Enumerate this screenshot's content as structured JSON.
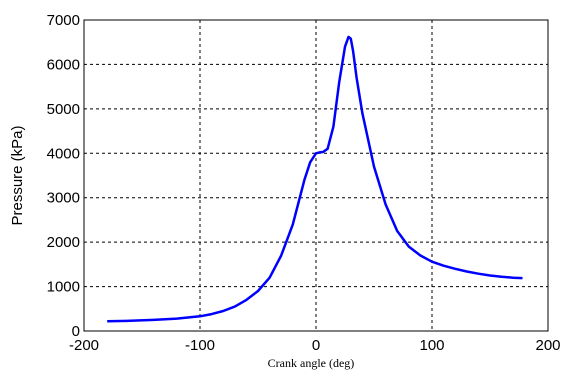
{
  "chart_data": {
    "type": "line",
    "xlabel": "Crank angle (deg)",
    "ylabel": "Pressure (kPa)",
    "xlim": [
      -200,
      200
    ],
    "ylim": [
      0,
      7000
    ],
    "x_ticks": [
      -200,
      -100,
      0,
      100,
      200
    ],
    "y_ticks": [
      0,
      1000,
      2000,
      3000,
      4000,
      5000,
      6000,
      7000
    ],
    "grid": true,
    "line_color": "#0000ff",
    "series": [
      {
        "x": [
          -180,
          -160,
          -140,
          -120,
          -100,
          -90,
          -80,
          -70,
          -60,
          -50,
          -40,
          -30,
          -20,
          -15,
          -10,
          -5,
          0,
          3,
          6,
          10,
          15,
          20,
          25,
          28,
          30,
          32,
          35,
          40,
          50,
          60,
          70,
          80,
          90,
          100,
          110,
          120,
          130,
          140,
          150,
          160,
          170,
          178
        ],
        "y": [
          220,
          230,
          250,
          280,
          330,
          380,
          450,
          550,
          700,
          900,
          1200,
          1700,
          2400,
          2900,
          3400,
          3800,
          4000,
          4020,
          4030,
          4100,
          4600,
          5600,
          6400,
          6620,
          6580,
          6300,
          5700,
          4900,
          3700,
          2850,
          2250,
          1900,
          1700,
          1560,
          1470,
          1400,
          1340,
          1290,
          1250,
          1220,
          1200,
          1190
        ]
      }
    ]
  }
}
